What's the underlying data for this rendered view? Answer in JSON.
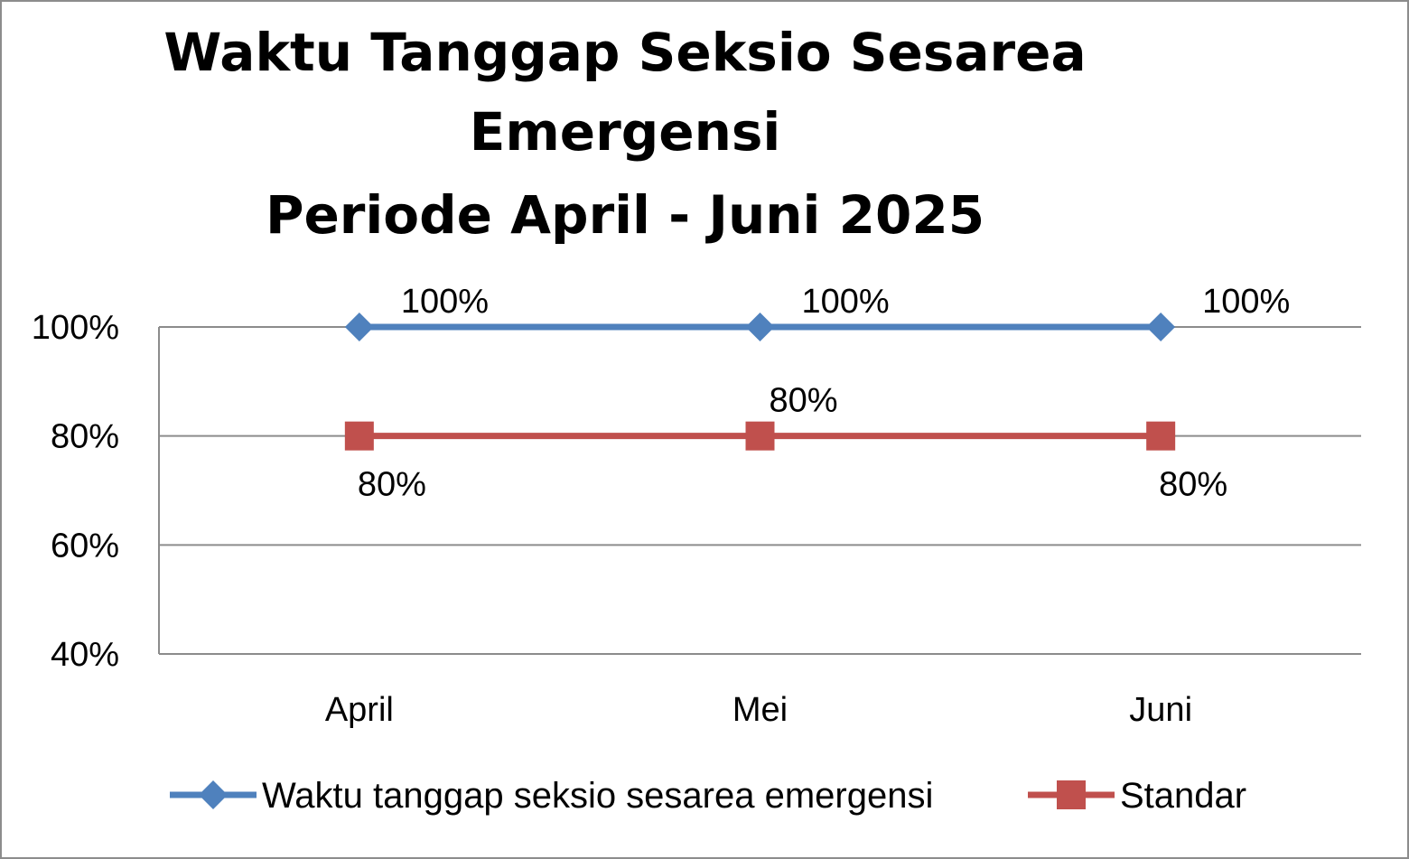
{
  "chart_data": {
    "type": "line",
    "title_lines": [
      "Waktu Tanggap Seksio Sesarea",
      "Emergensi",
      "Periode April - Juni 2025"
    ],
    "categories": [
      "April",
      "Mei",
      "Juni"
    ],
    "series": [
      {
        "name": "Waktu tanggap seksio sesarea emergensi",
        "values": [
          1.0,
          1.0,
          1.0
        ],
        "labels": [
          "100%",
          "100%",
          "100%"
        ],
        "color": "#4f81bd",
        "marker": "diamond",
        "label_position": "above-right"
      },
      {
        "name": "Standar",
        "values": [
          0.8,
          0.8,
          0.8
        ],
        "labels": [
          "80%",
          "80%",
          "80%"
        ],
        "color": "#c0504d",
        "marker": "square",
        "label_position": [
          "below-right",
          "above",
          "below-right"
        ]
      }
    ],
    "ylim": [
      0.4,
      1.0
    ],
    "yticks": [
      1.0,
      0.8,
      0.6,
      0.4
    ],
    "ytick_labels": [
      "100%",
      "80%",
      "60%",
      "40%"
    ],
    "grid": true,
    "legend_position": "bottom",
    "gridline_color": "#8c8c8c"
  }
}
